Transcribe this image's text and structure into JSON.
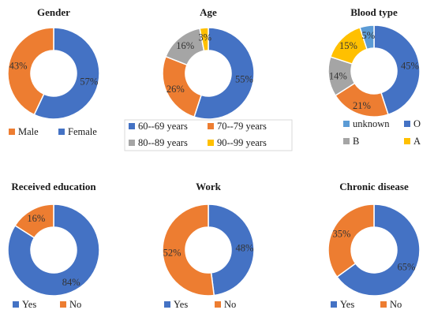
{
  "chart_data": [
    {
      "type": "pie",
      "title": "Gender",
      "series": [
        {
          "name": "Male",
          "value": 43,
          "label": "43%",
          "color": "#ED7D31"
        },
        {
          "name": "Female",
          "value": 57,
          "label": "57%",
          "color": "#4472C4"
        }
      ]
    },
    {
      "type": "pie",
      "title": "Age",
      "series": [
        {
          "name": "60--69 years",
          "value": 55,
          "label": "55%",
          "color": "#4472C4"
        },
        {
          "name": "70--79 years",
          "value": 26,
          "label": "26%",
          "color": "#ED7D31"
        },
        {
          "name": "80--89 years",
          "value": 16,
          "label": "16%",
          "color": "#A5A5A5"
        },
        {
          "name": "90--99 years",
          "value": 3,
          "label": "3%",
          "color": "#FFC000"
        }
      ]
    },
    {
      "type": "pie",
      "title": "Blood type",
      "series": [
        {
          "name": "unknown",
          "value": 5,
          "label": "5%",
          "color": "#5B9BD5"
        },
        {
          "name": "O",
          "value": 45,
          "label": "45%",
          "color": "#4472C4"
        },
        {
          "name": "B",
          "value": 14,
          "label": "14%",
          "color": "#A5A5A5"
        },
        {
          "name": "A",
          "value": 15,
          "label": "15%",
          "color": "#FFC000"
        },
        {
          "name": "",
          "value": 21,
          "label": "21%",
          "color": "#ED7D31"
        }
      ],
      "legend_order": [
        "unknown",
        "O",
        "B",
        "A"
      ]
    },
    {
      "type": "pie",
      "title": "Received education",
      "series": [
        {
          "name": "Yes",
          "value": 84,
          "label": "84%",
          "color": "#4472C4"
        },
        {
          "name": "No",
          "value": 16,
          "label": "16%",
          "color": "#ED7D31"
        }
      ]
    },
    {
      "type": "pie",
      "title": "Work",
      "series": [
        {
          "name": "Yes",
          "value": 48,
          "label": "48%",
          "color": "#4472C4"
        },
        {
          "name": "No",
          "value": 52,
          "label": "52%",
          "color": "#ED7D31"
        }
      ]
    },
    {
      "type": "pie",
      "title": "Chronic disease",
      "series": [
        {
          "name": "Yes",
          "value": 65,
          "label": "65%",
          "color": "#4472C4"
        },
        {
          "name": "No",
          "value": 35,
          "label": "35%",
          "color": "#ED7D31"
        }
      ]
    }
  ]
}
